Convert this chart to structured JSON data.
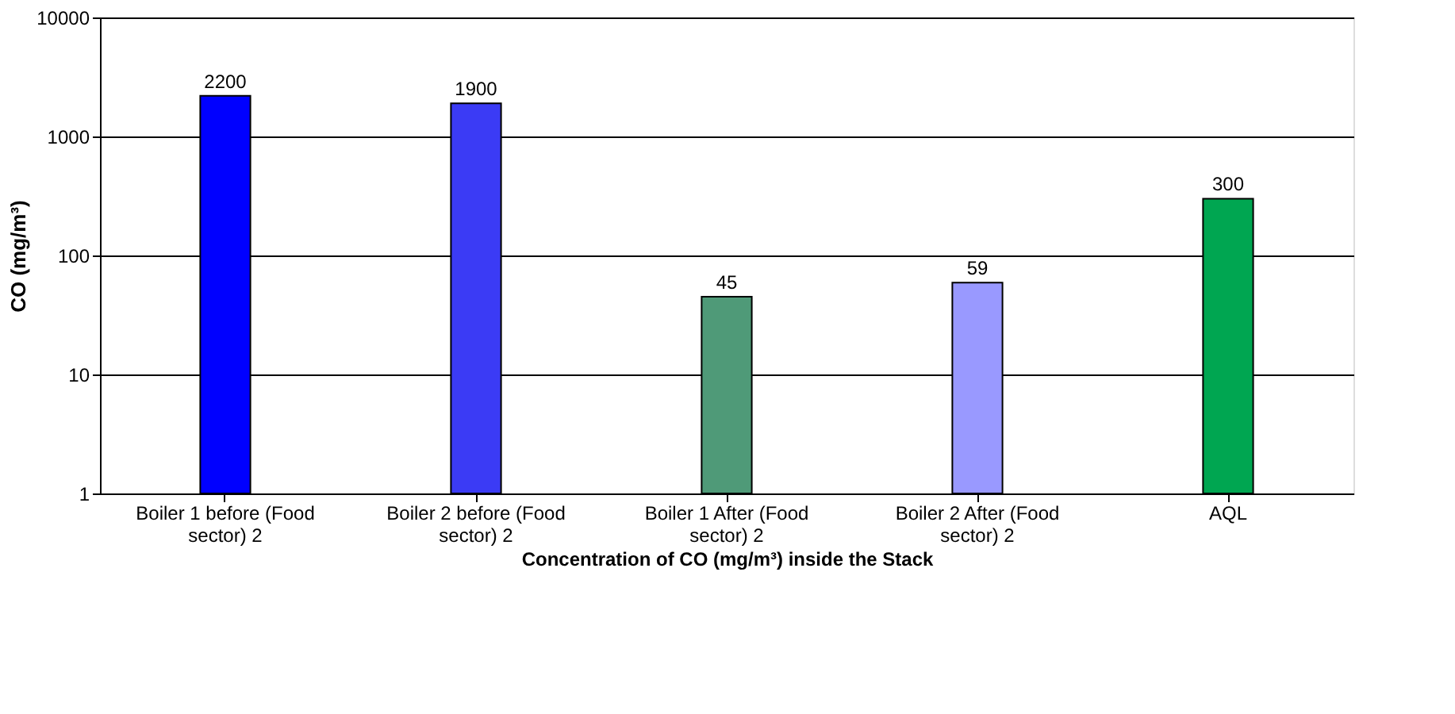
{
  "chart_data": {
    "type": "bar",
    "categories": [
      "Boiler 1 before (Food sector) 2",
      "Boiler 2 before (Food sector) 2",
      "Boiler 1 After (Food sector) 2",
      "Boiler 2 After (Food sector) 2",
      "AQL"
    ],
    "values": [
      2200,
      1900,
      45,
      59,
      300
    ],
    "colors": [
      "#0000ff",
      "#3b3bf5",
      "#4f9a78",
      "#9999ff",
      "#00a651"
    ],
    "xlabel": "Concentration of CO (mg/m³) inside the Stack",
    "ylabel": "CO (mg/m³)",
    "log": true,
    "ylim": [
      1,
      10000
    ],
    "yticks": [
      1,
      10,
      100,
      1000,
      10000
    ],
    "grid": "y",
    "data_labels": true
  }
}
